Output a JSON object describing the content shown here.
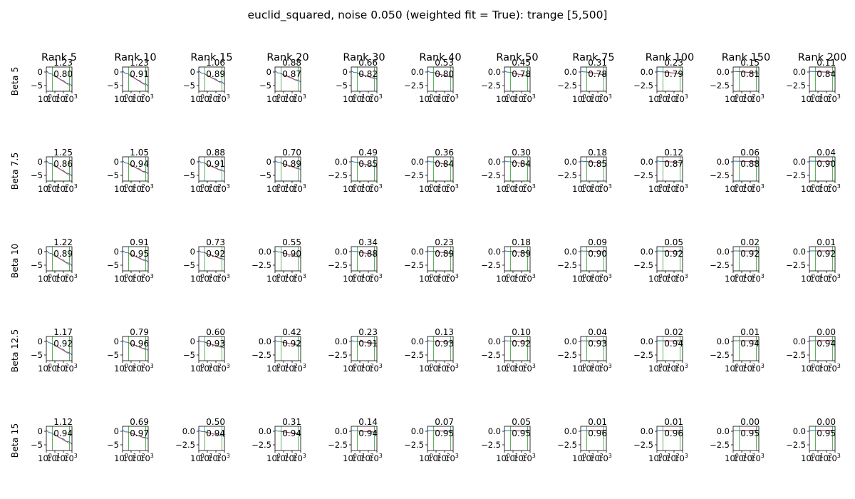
{
  "title": "euclid_squared, noise 0.050 (weighted fit = True): trange [5,500]",
  "colors": {
    "line": "#1f77b4",
    "fit": "#d62728",
    "vline": "#2ca02c",
    "axis": "#000000"
  },
  "chart_data": {
    "type": "line",
    "layout": "small-multiples grid (rows = beta, columns = rank)",
    "xscale": "log",
    "xlim": [
      1,
      1000
    ],
    "x_tick_labels": [
      "10^0",
      "10^1",
      "10^2",
      "10^3"
    ],
    "vertical_lines_x": [
      5,
      500
    ],
    "ranks": [
      "Rank 5",
      "Rank 10",
      "Rank 15",
      "Rank 20",
      "Rank 30",
      "Rank 40",
      "Rank 50",
      "Rank 75",
      "Rank 100",
      "Rank 150",
      "Rank 200"
    ],
    "betas": [
      "Beta 5",
      "Beta 7.5",
      "Beta 10",
      "Beta 12.5",
      "Beta 15"
    ],
    "slopes": [
      [
        "1.23",
        "1.23",
        "1.06",
        "0.88",
        "0.66",
        "0.53",
        "0.45",
        "0.31",
        "0.23",
        "0.15",
        "0.11"
      ],
      [
        "1.25",
        "1.05",
        "0.88",
        "0.70",
        "0.49",
        "0.36",
        "0.30",
        "0.18",
        "0.12",
        "0.06",
        "0.04"
      ],
      [
        "1.22",
        "0.91",
        "0.73",
        "0.55",
        "0.34",
        "0.23",
        "0.18",
        "0.09",
        "0.05",
        "0.02",
        "0.01"
      ],
      [
        "1.17",
        "0.79",
        "0.60",
        "0.42",
        "0.23",
        "0.13",
        "0.10",
        "0.04",
        "0.02",
        "0.01",
        "0.00"
      ],
      [
        "1.12",
        "0.69",
        "0.50",
        "0.31",
        "0.14",
        "0.07",
        "0.05",
        "0.01",
        "0.01",
        "0.00",
        "0.00"
      ]
    ],
    "r2": [
      [
        "0.80",
        "0.91",
        "0.89",
        "0.87",
        "0.82",
        "0.80",
        "0.78",
        "0.78",
        "0.79",
        "0.81",
        "0.84"
      ],
      [
        "0.86",
        "0.94",
        "0.91",
        "0.89",
        "0.85",
        "0.84",
        "0.84",
        "0.85",
        "0.87",
        "0.88",
        "0.90"
      ],
      [
        "0.89",
        "0.95",
        "0.92",
        "0.90",
        "0.88",
        "0.89",
        "0.89",
        "0.90",
        "0.92",
        "0.92",
        "0.92"
      ],
      [
        "0.92",
        "0.96",
        "0.93",
        "0.92",
        "0.91",
        "0.93",
        "0.92",
        "0.93",
        "0.94",
        "0.94",
        "0.94"
      ],
      [
        "0.94",
        "0.97",
        "0.94",
        "0.94",
        "0.94",
        "0.95",
        "0.95",
        "0.96",
        "0.96",
        "0.95",
        "0.95"
      ]
    ],
    "y_ticks": [
      [
        [
          "0",
          "-5"
        ],
        [
          "0",
          "-5"
        ],
        [
          "0",
          "-5"
        ],
        [
          "0",
          "-5"
        ],
        [
          "0",
          "-5"
        ],
        [
          "0.0",
          "-2.5"
        ],
        [
          "0.0",
          "-2.5"
        ],
        [
          "0.0",
          "-2.5"
        ],
        [
          "0.0",
          "-2.5"
        ],
        [
          "0.0",
          "-2.5"
        ],
        [
          "0.0",
          "-2.5"
        ]
      ],
      [
        [
          "0",
          "-5"
        ],
        [
          "0",
          "-5"
        ],
        [
          "0",
          "-5"
        ],
        [
          "0",
          "-5"
        ],
        [
          "0.0",
          "-2.5"
        ],
        [
          "0.0",
          "-2.5"
        ],
        [
          "0.0",
          "-2.5"
        ],
        [
          "0.0",
          "-2.5"
        ],
        [
          "0.0",
          "-2.5"
        ],
        [
          "0.0",
          "-2.5"
        ],
        [
          "0.0",
          "-2.5"
        ]
      ],
      [
        [
          "0",
          "-5"
        ],
        [
          "0",
          "-5"
        ],
        [
          "0",
          "-5"
        ],
        [
          "0.0",
          "-2.5"
        ],
        [
          "0.0",
          "-2.5"
        ],
        [
          "0.0",
          "-2.5"
        ],
        [
          "0.0",
          "-2.5"
        ],
        [
          "0.0",
          "-2.5"
        ],
        [
          "0.0",
          "-2.5"
        ],
        [
          "0.0",
          "-2.5"
        ],
        [
          "0.0",
          "-2.5"
        ]
      ],
      [
        [
          "0",
          "-5"
        ],
        [
          "0",
          "-5"
        ],
        [
          "0",
          "-5"
        ],
        [
          "0.0",
          "-2.5"
        ],
        [
          "0.0",
          "-2.5"
        ],
        [
          "0.0",
          "-2.5"
        ],
        [
          "0.0",
          "-2.5"
        ],
        [
          "0.0",
          "-2.5"
        ],
        [
          "0.0",
          "-2.5"
        ],
        [
          "0.0",
          "-2.5"
        ],
        [
          "0.0",
          "-2.5"
        ]
      ],
      [
        [
          "0",
          "-5"
        ],
        [
          "0",
          "-5"
        ],
        [
          "0.0",
          "-2.5"
        ],
        [
          "0.0",
          "-2.5"
        ],
        [
          "0.0",
          "-2.5"
        ],
        [
          "0.0",
          "-2.5"
        ],
        [
          "0.0",
          "-2.5"
        ],
        [
          "0.0",
          "-2.5"
        ],
        [
          "0.0",
          "-2.5"
        ],
        [
          "0.0",
          "-2.5"
        ],
        [
          "0.0",
          "-2.5"
        ]
      ]
    ]
  }
}
